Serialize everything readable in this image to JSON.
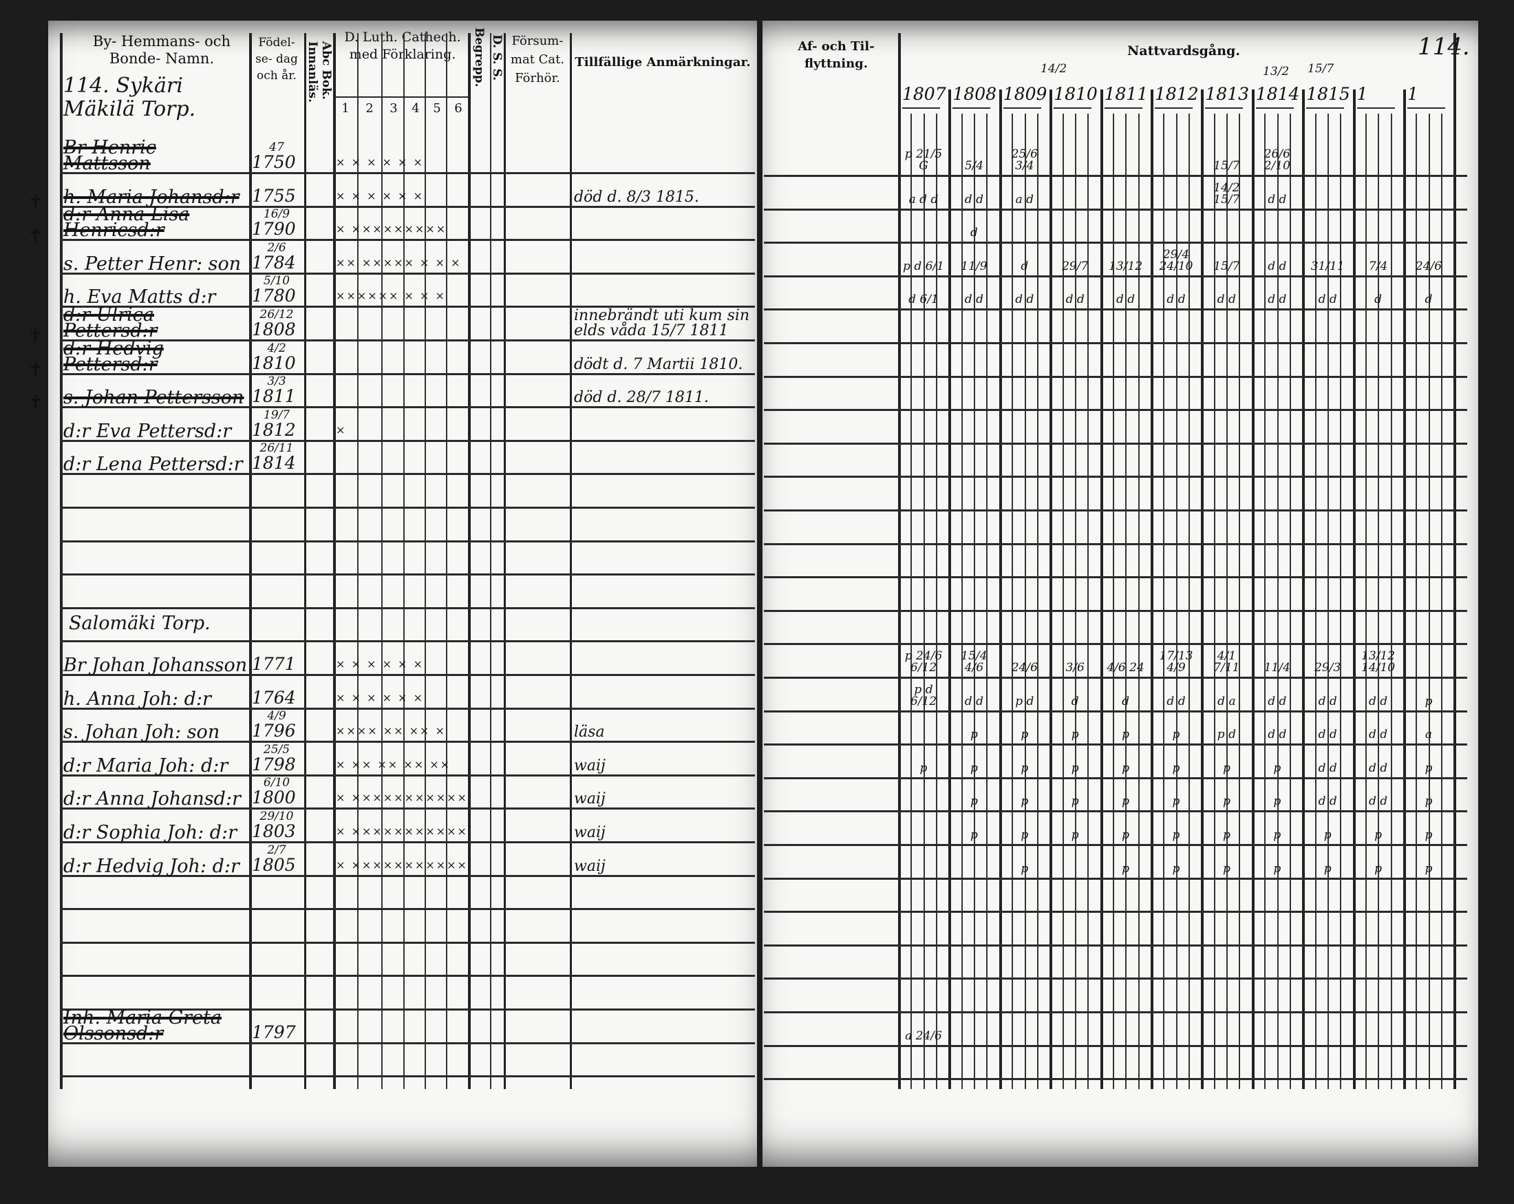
{
  "left_page": {
    "headers": {
      "name": "By- Hemmans- och Bonde- Namn.",
      "birth": "Födel- se- dag och år.",
      "abc": "Abc Bok. Innanläs.",
      "catechism": "D. Luth. Cathech. med Förklaring.",
      "catechism_cols": [
        "1",
        "2",
        "3",
        "4",
        "5",
        "6"
      ],
      "begrepp": "Begrepp.",
      "ds": "D. S. S.",
      "forsummat": "Försum- mat Cat. Förhör.",
      "remarks": "Tillfällige Anmärkningar."
    },
    "household_title": "114. Sykäri Mäkilä Torp.",
    "rows": [
      {
        "name": "Br Henric Mattsson",
        "birth_day": "47",
        "birth_year": "1750",
        "cat": "× × × × × ×",
        "struck": true
      },
      {
        "name": "h. Maria Johansd:r",
        "birth_year": "1755",
        "cat": "× × × × × ×",
        "struck": true,
        "cross": true,
        "remark": "död d. 8/3 1815."
      },
      {
        "name": "d:r Anna Lisa Henricsd:r",
        "birth_day": "16/9",
        "birth_year": "1790",
        "cat": "× ×××××××××",
        "struck": true,
        "cross": true
      },
      {
        "name": "s. Petter Henr: son",
        "birth_day": "2/6",
        "birth_year": "1784",
        "cat": "×× ××××× × × ×"
      },
      {
        "name": "h. Eva Matts d:r",
        "birth_day": "5/10",
        "birth_year": "1780",
        "cat": "×××××× × × ×"
      },
      {
        "name": "d:r Ulrica Pettersd:r",
        "birth_day": "26/12",
        "birth_year": "1808",
        "struck": true,
        "cross": true,
        "remark": "innebrändt uti kum sin elds våda 15/7 1811"
      },
      {
        "name": "d:r Hedvig Pettersd:r",
        "birth_day": "4/2",
        "birth_year": "1810",
        "struck": true,
        "cross": true,
        "remark": "dödt d. 7 Martii 1810."
      },
      {
        "name": "s. Johan Pettersson",
        "birth_day": "3/3",
        "birth_year": "1811",
        "struck": true,
        "cross": true,
        "remark": "död d. 28/7 1811."
      },
      {
        "name": "d:r Eva Pettersd:r",
        "birth_day": "19/7",
        "birth_year": "1812",
        "cat": "×"
      },
      {
        "name": "d:r Lena Pettersd:r",
        "birth_day": "26/11",
        "birth_year": "1814"
      },
      {},
      {},
      {},
      {},
      {
        "title": "Salomäki Torp."
      },
      {
        "name": "Br Johan Johansson",
        "birth_year": "1771",
        "cat": "× × × × × ×"
      },
      {
        "name": "h. Anna Joh: d:r",
        "birth_year": "1764",
        "cat": "× × × × × ×"
      },
      {
        "name": "s. Johan Joh: son",
        "birth_day": "4/9",
        "birth_year": "1796",
        "cat": "×××× ×× ×× ×",
        "remark": "läsa"
      },
      {
        "name": "d:r Maria Joh: d:r",
        "birth_day": "25/5",
        "birth_year": "1798",
        "cat": "× ×× ×× ×× ××",
        "remark": "waij"
      },
      {
        "name": "d:r Anna Johansd:r",
        "birth_day": "6/10",
        "birth_year": "1800",
        "cat": "× ×××××××××××",
        "remark": "waij"
      },
      {
        "name": "d:r Sophia Joh: d:r",
        "birth_day": "29/10",
        "birth_year": "1803",
        "cat": "× ×××××××××××",
        "remark": "waij"
      },
      {
        "name": "d:r Hedvig Joh: d:r",
        "birth_day": "2/7",
        "birth_year": "1805",
        "cat": "× ×××××××××××",
        "remark": "waij"
      },
      {},
      {},
      {},
      {},
      {
        "name": "Inh. Maria Greta Olssonsd:r",
        "birth_year": "1797",
        "struck": true
      },
      {},
      {}
    ]
  },
  "right_page": {
    "page_number": "114.",
    "moving_header": "Af- och Til- flyttning.",
    "communion_header": "Nattvardsgång.",
    "header_notes": [
      "14/2",
      "13/2",
      "15/7"
    ],
    "years": [
      "1807",
      "1808",
      "1809",
      "1810",
      "1811",
      "1812",
      "1813",
      "1814",
      "1815",
      "1",
      "1"
    ],
    "marks": [
      [
        "p 21/5 G",
        "5/4",
        "25/6 3/4",
        "",
        "",
        "",
        "15/7",
        "26/6 2/10",
        "",
        "",
        ""
      ],
      [
        "a d d",
        "d d",
        "a d",
        "",
        "",
        "",
        "14/2 15/7",
        "d d",
        "",
        "",
        ""
      ],
      [
        "",
        "d",
        "",
        "",
        "",
        "",
        "",
        "",
        "",
        "",
        ""
      ],
      [
        "p d 6/1",
        "11/9",
        "d",
        "29/7",
        "13/12",
        "29/4 24/10",
        "15/7",
        "d d",
        "31/11",
        "7/4",
        "24/6"
      ],
      [
        "d 6/1",
        "d d",
        "d d",
        "d d",
        "d d",
        "d d",
        "d d",
        "d d",
        "d d",
        "d",
        "d"
      ],
      [],
      [],
      [],
      [],
      [],
      [],
      [],
      [],
      [],
      [],
      [
        "p 24/6 6/12",
        "15/4 4/6",
        "24/6",
        "3/6",
        "4/6 24",
        "17/13 4/9",
        "4/1 7/11",
        "11/4",
        "29/3",
        "13/12 14/10",
        ""
      ],
      [
        "p d 6/12",
        "d d",
        "p d",
        "d",
        "d",
        "d d",
        "d a",
        "d d",
        "d d",
        "d d",
        "p"
      ],
      [
        "",
        "p",
        "p",
        "p",
        "p",
        "p",
        "p d",
        "d d",
        "d d",
        "d d",
        "a"
      ],
      [
        "p",
        "p",
        "p",
        "p",
        "p",
        "p",
        "p",
        "p",
        "d d",
        "d d",
        "p"
      ],
      [
        "",
        "p",
        "p",
        "p",
        "p",
        "p",
        "p",
        "p",
        "d d",
        "d d",
        "p"
      ],
      [
        "",
        "p",
        "p",
        "p",
        "p",
        "p",
        "p",
        "p",
        "p",
        "p",
        "p"
      ],
      [
        "",
        "",
        "p",
        "",
        "p",
        "p",
        "p",
        "p",
        "p",
        "p",
        "p"
      ],
      [],
      [],
      [],
      [],
      [
        "a 24/6",
        "",
        "",
        "",
        "",
        "",
        "",
        "",
        "",
        "",
        ""
      ],
      [],
      []
    ]
  }
}
